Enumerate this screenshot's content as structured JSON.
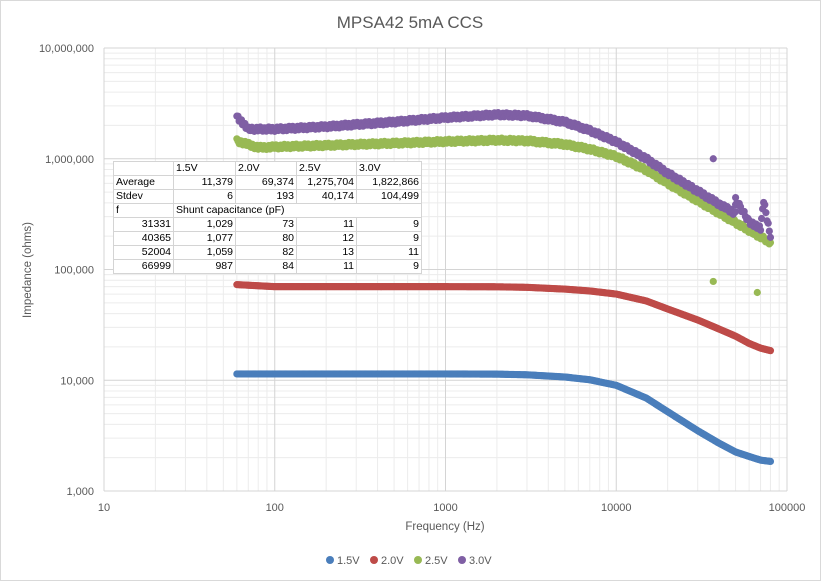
{
  "chart_data": {
    "type": "scatter",
    "title": "MPSA42 5mA CCS",
    "xlabel": "Frequency (Hz)",
    "ylabel": "Impedance (ohms)",
    "x_scale": "log",
    "y_scale": "log",
    "xlim": [
      10,
      100000
    ],
    "ylim": [
      1000,
      10000000
    ],
    "x_ticks": [
      "10",
      "100",
      "1000",
      "10000",
      "100000"
    ],
    "y_ticks": [
      "1,000",
      "10,000",
      "100,000",
      "1,000,000",
      "10,000,000"
    ],
    "grid": true,
    "legend_position": "bottom",
    "series": [
      {
        "name": "1.5V",
        "color": "#4a7ebb",
        "points": [
          [
            60,
            11400
          ],
          [
            100,
            11400
          ],
          [
            200,
            11400
          ],
          [
            500,
            11400
          ],
          [
            1000,
            11400
          ],
          [
            2000,
            11350
          ],
          [
            3000,
            11200
          ],
          [
            5000,
            10700
          ],
          [
            7000,
            10100
          ],
          [
            10000,
            9000
          ],
          [
            15000,
            6900
          ],
          [
            20000,
            5200
          ],
          [
            30000,
            3500
          ],
          [
            40000,
            2700
          ],
          [
            50000,
            2250
          ],
          [
            60000,
            2050
          ],
          [
            70000,
            1900
          ],
          [
            80000,
            1850
          ]
        ]
      },
      {
        "name": "2.0V",
        "color": "#be4b48",
        "points": [
          [
            60,
            73000
          ],
          [
            100,
            70000
          ],
          [
            200,
            70000
          ],
          [
            500,
            70000
          ],
          [
            1000,
            70000
          ],
          [
            2000,
            69800
          ],
          [
            3000,
            69000
          ],
          [
            5000,
            66500
          ],
          [
            7000,
            64000
          ],
          [
            10000,
            60000
          ],
          [
            15000,
            52000
          ],
          [
            20000,
            44000
          ],
          [
            30000,
            35000
          ],
          [
            40000,
            29000
          ],
          [
            50000,
            25000
          ],
          [
            60000,
            21500
          ],
          [
            70000,
            19500
          ],
          [
            80000,
            18500
          ]
        ]
      },
      {
        "name": "2.5V",
        "color": "#98b954",
        "points": [
          [
            60,
            1450000
          ],
          [
            80,
            1260000
          ],
          [
            100,
            1280000
          ],
          [
            200,
            1320000
          ],
          [
            500,
            1380000
          ],
          [
            1000,
            1430000
          ],
          [
            2000,
            1470000
          ],
          [
            3000,
            1450000
          ],
          [
            5000,
            1350000
          ],
          [
            7000,
            1220000
          ],
          [
            10000,
            1050000
          ],
          [
            15000,
            790000
          ],
          [
            20000,
            600000
          ],
          [
            30000,
            420000
          ],
          [
            40000,
            320000
          ],
          [
            50000,
            265000
          ],
          [
            60000,
            230000
          ],
          [
            70000,
            200000
          ],
          [
            80000,
            175000
          ],
          [
            37000,
            78000
          ],
          [
            67000,
            62000
          ]
        ]
      },
      {
        "name": "3.0V",
        "color": "#7f5fa4",
        "points": [
          [
            60,
            2400000
          ],
          [
            70,
            1850000
          ],
          [
            100,
            1850000
          ],
          [
            200,
            1950000
          ],
          [
            500,
            2150000
          ],
          [
            1000,
            2350000
          ],
          [
            2000,
            2500000
          ],
          [
            3000,
            2450000
          ],
          [
            5000,
            2150000
          ],
          [
            7000,
            1800000
          ],
          [
            10000,
            1420000
          ],
          [
            15000,
            1000000
          ],
          [
            20000,
            740000
          ],
          [
            30000,
            510000
          ],
          [
            40000,
            390000
          ],
          [
            50000,
            320000
          ],
          [
            60000,
            270000
          ],
          [
            70000,
            235000
          ],
          [
            80000,
            195000
          ],
          [
            37000,
            1000000
          ],
          [
            50000,
            430000
          ],
          [
            73000,
            420000
          ]
        ]
      }
    ],
    "table": {
      "header": [
        "",
        "1.5V",
        "2.0V",
        "2.5V",
        "3.0V"
      ],
      "summary_rows": [
        [
          "Average",
          "11,379",
          "69,374",
          "1,275,704",
          "1,822,866"
        ],
        [
          "Stdev",
          "6",
          "193",
          "40,174",
          "104,499"
        ]
      ],
      "section_header": [
        "f",
        "Shunt capacitance (pF)"
      ],
      "rows": [
        [
          "31331",
          "1,029",
          "73",
          "11",
          "9"
        ],
        [
          "40365",
          "1,077",
          "80",
          "12",
          "9"
        ],
        [
          "52004",
          "1,059",
          "82",
          "13",
          "11"
        ],
        [
          "66999",
          "987",
          "84",
          "11",
          "9"
        ]
      ]
    }
  }
}
